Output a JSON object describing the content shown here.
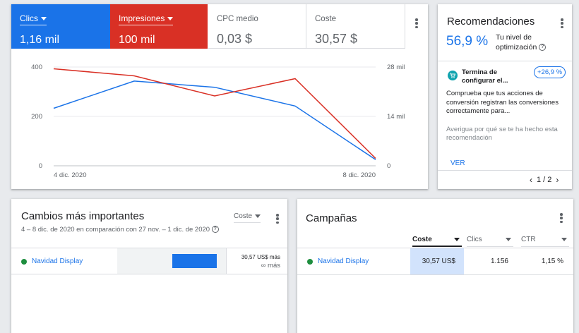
{
  "performance": {
    "metrics": [
      {
        "label": "Clics",
        "value": "1,16 mil"
      },
      {
        "label": "Impresiones",
        "value": "100 mil"
      },
      {
        "label": "CPC medio",
        "value": "0,03 $"
      },
      {
        "label": "Coste",
        "value": "30,57 $"
      }
    ],
    "chart_data": {
      "type": "line",
      "x": [
        "4 dic.",
        "5 dic.",
        "6 dic.",
        "7 dic.",
        "8 dic."
      ],
      "x_tick_labels": [
        "4 dic. 2020",
        "8 dic. 2020"
      ],
      "series": [
        {
          "name": "Clics",
          "axis": "left",
          "color": "#1a73e8",
          "values": [
            233,
            343,
            318,
            242,
            25
          ]
        },
        {
          "name": "Impresiones",
          "axis": "right",
          "color": "#d93025",
          "values": [
            27500,
            25500,
            19800,
            24700,
            2100
          ]
        }
      ],
      "left_axis": {
        "ylim": [
          0,
          400
        ],
        "ticks": [
          0,
          200,
          400
        ],
        "tick_labels": [
          "0",
          "200",
          "400"
        ]
      },
      "right_axis": {
        "ylim": [
          0,
          28000
        ],
        "ticks": [
          0,
          14000,
          28000
        ],
        "tick_labels": [
          "0",
          "14 mil",
          "28 mil"
        ]
      }
    }
  },
  "recommendations": {
    "title": "Recomendaciones",
    "score": "56,9 %",
    "score_label_line1": "Tu nivel de",
    "score_label_line2": "optimización",
    "item": {
      "title": "Termina de configurar el...",
      "badge": "+26,9 %",
      "description": "Comprueba que tus acciones de conversión registran las conversiones correctamente para...",
      "more": "Averigua por qué se te ha hecho esta recomendación",
      "action": "VER"
    },
    "pager": "1 / 2"
  },
  "changes": {
    "title": "Cambios más importantes",
    "subtitle": "4 – 8 dic. de 2020 en comparación con 27 nov. – 1 dic. de 2020",
    "sort_label": "Coste",
    "row": {
      "name": "Navidad Display",
      "value": "30,57 US$ más",
      "change": "∞ más",
      "bar_fraction": 1.0
    }
  },
  "campaigns": {
    "title": "Campañas",
    "columns": [
      "Coste",
      "Clics",
      "CTR"
    ],
    "row": {
      "name": "Navidad Display",
      "cost": "30,57 US$",
      "clicks": "1.156",
      "ctr": "1,15 %"
    }
  }
}
